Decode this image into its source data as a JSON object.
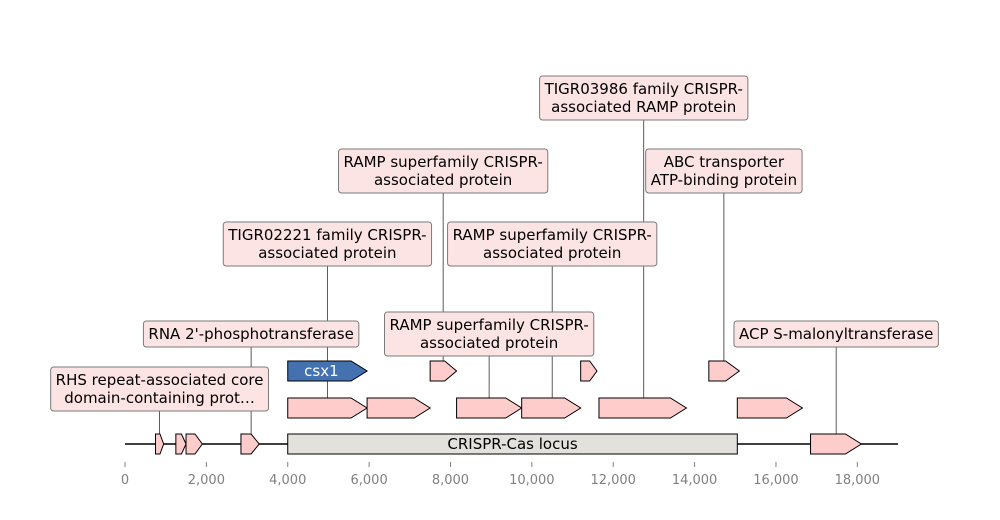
{
  "colors": {
    "gene_fill": "#ffcccc",
    "highlight_fill": "#4472b0",
    "highlight_text": "#ffffff",
    "locus_fill": "#e2e1dc",
    "label_fill": "#fde4e4",
    "label_border": "#7a7a7a",
    "axis_text": "#808080"
  },
  "axis": {
    "min": 0,
    "max": 19000,
    "ticks": [
      {
        "value": 0,
        "label": "0"
      },
      {
        "value": 2000,
        "label": "2,000"
      },
      {
        "value": 4000,
        "label": "4,000"
      },
      {
        "value": 6000,
        "label": "6,000"
      },
      {
        "value": 8000,
        "label": "8,000"
      },
      {
        "value": 10000,
        "label": "10,000"
      },
      {
        "value": 12000,
        "label": "12,000"
      },
      {
        "value": 14000,
        "label": "14,000"
      },
      {
        "value": 16000,
        "label": "16,000"
      },
      {
        "value": 18000,
        "label": "18,000"
      }
    ]
  },
  "locus": {
    "start": 4000,
    "end": 15050,
    "label": "CRISPR-Cas locus"
  },
  "genes": [
    {
      "start": 750,
      "end": 950,
      "track": 0
    },
    {
      "start": 1250,
      "end": 1500,
      "track": 0
    },
    {
      "start": 1500,
      "end": 1900,
      "track": 0
    },
    {
      "start": 2850,
      "end": 3300,
      "track": 0
    },
    {
      "start": 16850,
      "end": 18100,
      "track": 0
    },
    {
      "start": 4000,
      "end": 5950,
      "track": 1
    },
    {
      "start": 5950,
      "end": 7500,
      "track": 1
    },
    {
      "start": 8150,
      "end": 9750,
      "track": 1
    },
    {
      "start": 9750,
      "end": 11200,
      "track": 1
    },
    {
      "start": 11650,
      "end": 13800,
      "track": 1
    },
    {
      "start": 15050,
      "end": 16650,
      "track": 1
    },
    {
      "start": 4000,
      "end": 5950,
      "track": 2,
      "name": "csx1",
      "highlight": true
    },
    {
      "start": 7500,
      "end": 8150,
      "track": 2
    },
    {
      "start": 11200,
      "end": 11600,
      "track": 2
    },
    {
      "start": 14350,
      "end": 15100,
      "track": 2
    }
  ],
  "annotations": [
    {
      "lines": [
        "RHS repeat-associated core",
        "domain-containing prot…"
      ],
      "pos": 850,
      "level": 0,
      "track": 0
    },
    {
      "lines": [
        "RNA 2'-phosphotransferase"
      ],
      "pos": 3100,
      "level": 1,
      "track": 0
    },
    {
      "lines": [
        "TIGR02221 family CRISPR-",
        "associated protein"
      ],
      "pos": 4975,
      "level": 2,
      "track": 1
    },
    {
      "lines": [
        "RAMP superfamily CRISPR-",
        "associated protein"
      ],
      "pos": 7820,
      "level": 3,
      "track": 2
    },
    {
      "lines": [
        "RAMP superfamily CRISPR-",
        "associated protein"
      ],
      "pos": 8950,
      "level": 1,
      "track": 1
    },
    {
      "lines": [
        "RAMP superfamily CRISPR-",
        "associated protein"
      ],
      "pos": 10500,
      "level": 2,
      "track": 1
    },
    {
      "lines": [
        "TIGR03986 family CRISPR-",
        "associated RAMP protein"
      ],
      "pos": 12750,
      "level": 4,
      "track": 1
    },
    {
      "lines": [
        "ABC transporter",
        "ATP-binding protein"
      ],
      "pos": 14720,
      "level": 3,
      "track": 2
    },
    {
      "lines": [
        "ACP S-malonyltransferase"
      ],
      "pos": 17480,
      "level": 1,
      "track": 0
    }
  ]
}
